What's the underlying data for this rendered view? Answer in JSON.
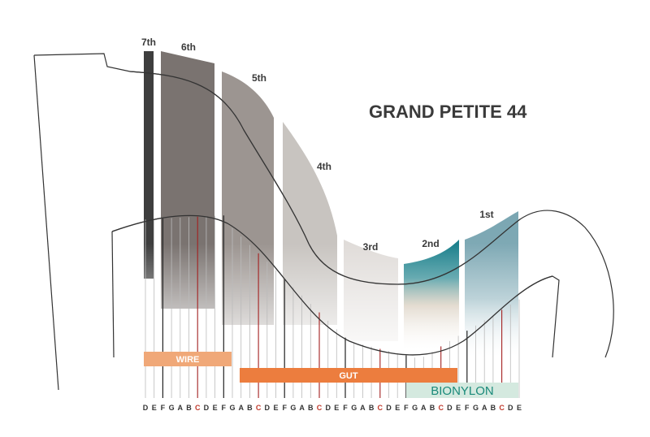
{
  "title": "GRAND PETITE 44",
  "octaves": [
    {
      "label": "7th",
      "color": "#3e3e3e"
    },
    {
      "label": "6th",
      "color": "#7a7370"
    },
    {
      "label": "5th",
      "color": "#9c9591"
    },
    {
      "label": "4th",
      "color": "#c8c4c0"
    },
    {
      "label": "3rd",
      "color": "#e0dcd9"
    },
    {
      "label": "2nd",
      "color": "#1e7f8a"
    },
    {
      "label": "1st",
      "color": "#7ba7b3"
    }
  ],
  "materials": [
    {
      "label": "WIRE",
      "color": "#f0a878"
    },
    {
      "label": "GUT",
      "color": "#ec7d3e"
    },
    {
      "label": "BIONYLON",
      "color": "#d4e9df",
      "text_color": "#1a8a7a"
    }
  ],
  "notes": [
    "D",
    "E",
    "F",
    "G",
    "A",
    "B",
    "C",
    "D",
    "E",
    "F",
    "G",
    "A",
    "B",
    "C",
    "D",
    "E",
    "F",
    "G",
    "A",
    "B",
    "C",
    "D",
    "E",
    "F",
    "G",
    "A",
    "B",
    "C",
    "D",
    "E",
    "F",
    "G",
    "A",
    "B",
    "C",
    "D",
    "E",
    "F",
    "G",
    "A",
    "B",
    "C",
    "D",
    "E"
  ],
  "colors": {
    "outline": "#333333",
    "c_string": "#a32020",
    "f_string": "#222222",
    "title": "#3a3a3a",
    "note_text": "#333333",
    "c_note_text": "#c0392b"
  }
}
